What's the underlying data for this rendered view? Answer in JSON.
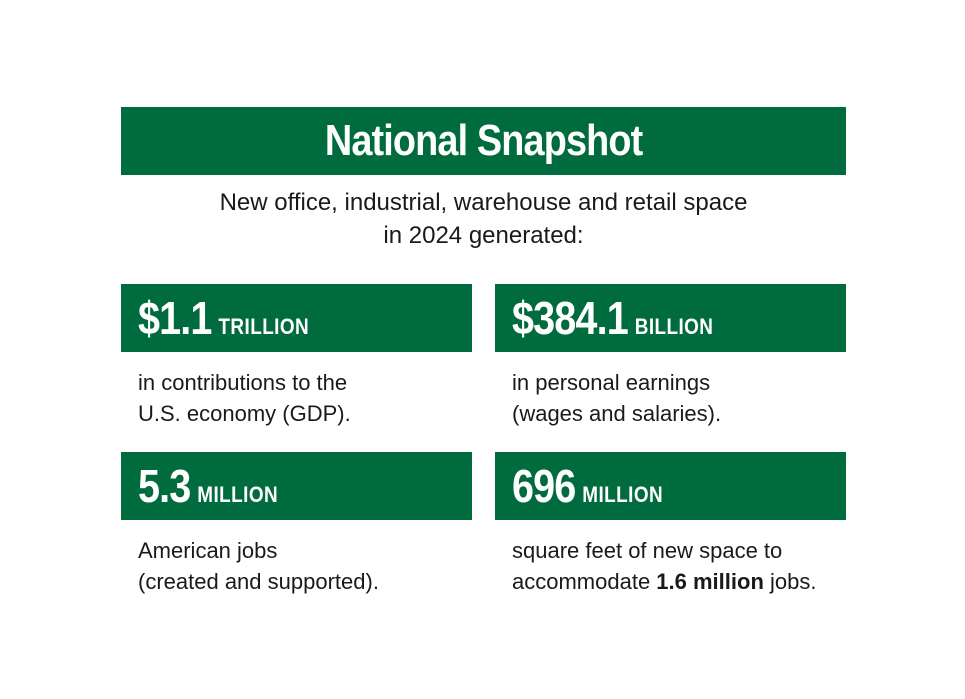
{
  "title": "National Snapshot",
  "subtitle": {
    "line1": "New office, industrial, warehouse and retail space",
    "line2": "in 2024 generated:"
  },
  "stats": [
    {
      "value": "$1.1",
      "unit": "TRILLION",
      "desc_line1": "in contributions to the",
      "desc_line2": "U.S. economy (GDP)."
    },
    {
      "value": "$384.1",
      "unit": "BILLION",
      "desc_line1": "in personal earnings",
      "desc_line2": "(wages and salaries)."
    },
    {
      "value": "5.3",
      "unit": "MILLION",
      "desc_line1": "American jobs",
      "desc_line2": "(created and supported)."
    },
    {
      "value": "696",
      "unit": "MILLION",
      "desc_line1": "square feet of new space to",
      "desc_line2_pre": "accommodate ",
      "desc_line2_bold": "1.6 million",
      "desc_line2_post": " jobs."
    }
  ],
  "colors": {
    "brand_green": "#006b3c",
    "text": "#1a1a1a",
    "background": "#ffffff"
  }
}
